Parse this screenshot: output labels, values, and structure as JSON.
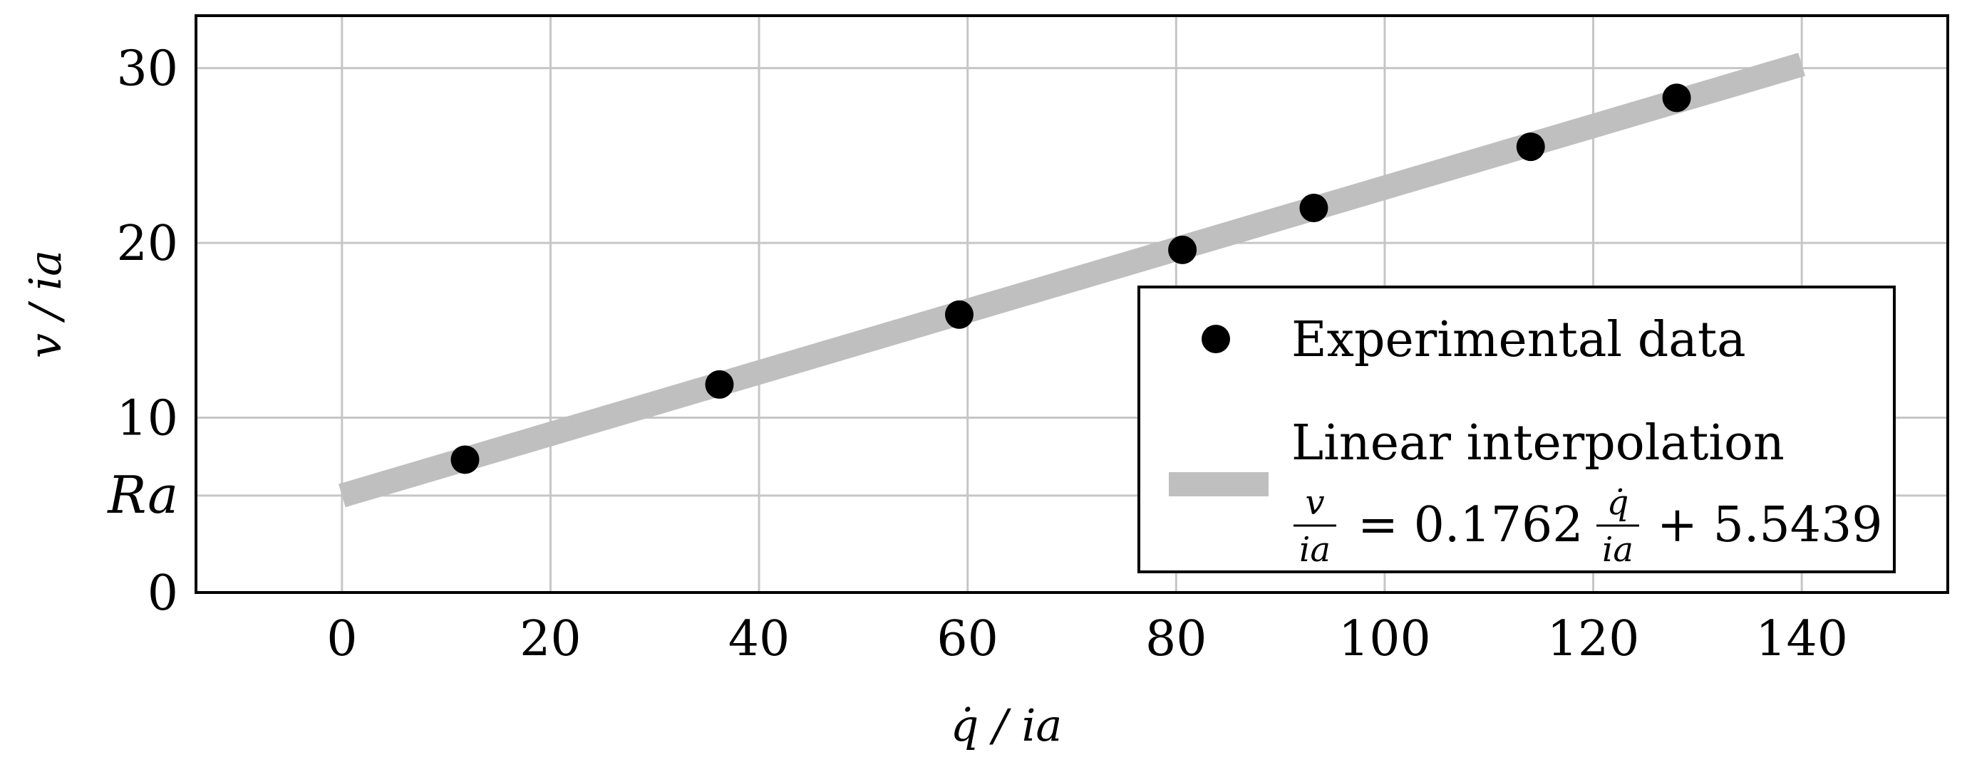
{
  "chart_data": {
    "type": "scatter",
    "xlabel": "q̇ / ia",
    "ylabel": "v / ia",
    "xlim": [
      -14,
      154
    ],
    "ylim": [
      0,
      33
    ],
    "x_ticks": [
      0,
      20,
      40,
      60,
      80,
      100,
      120,
      140
    ],
    "y_ticks": [
      0,
      10,
      20,
      30
    ],
    "special_y_tick": {
      "label": "Ra",
      "value": 5.5439
    },
    "grid": true,
    "legend_position": "lower-right",
    "series": [
      {
        "name": "Experimental data",
        "kind": "scatter",
        "color": "#000000",
        "x": [
          11.8,
          36.2,
          59.2,
          80.6,
          93.2,
          114.0,
          128.0
        ],
        "y": [
          7.6,
          11.9,
          15.9,
          19.6,
          22.0,
          25.5,
          28.3
        ]
      },
      {
        "name": "Linear interpolation",
        "kind": "line",
        "color": "#bfbfbf",
        "slope": 0.1762,
        "intercept": 5.5439,
        "x_range": [
          0,
          140
        ]
      }
    ],
    "legend": {
      "scatter_label": "Experimental data",
      "line_label": "Linear interpolation",
      "equation": {
        "lhs_num": "v",
        "lhs_den": "ia",
        "rhs_coef": "= 0.1762",
        "rhs_num": "q̇",
        "rhs_den": "ia",
        "rhs_tail": "+ 5.5439"
      }
    }
  }
}
